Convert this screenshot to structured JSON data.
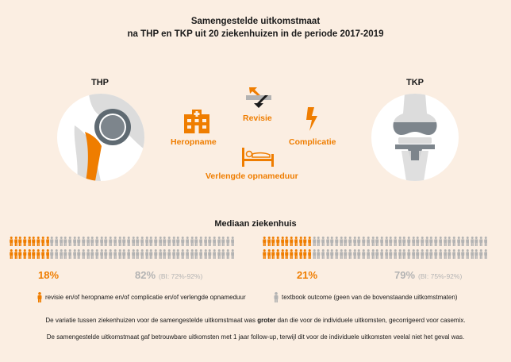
{
  "header": {
    "title_line1": "Samengestelde uitkomstmaat",
    "title_line2": "na THP en TKP uit 20 ziekenhuizen in de periode 2017-2019"
  },
  "left_label": "THP",
  "right_label": "TKP",
  "outcomes": {
    "revisie": "Revisie",
    "heropname": "Heropname",
    "complicatie": "Complicatie",
    "verlengde": "Verlengde opnameduur"
  },
  "section_title": "Mediaan ziekenhuis",
  "thp": {
    "pct_orange": "18%",
    "pct_grey": "82%",
    "ci": "(BI: 72%-92%)",
    "orange_fraction": 0.18
  },
  "tkp": {
    "pct_orange": "21%",
    "pct_grey": "79%",
    "ci": "(BI: 75%-92%)",
    "orange_fraction": 0.21
  },
  "legend": {
    "orange": "revisie en/of heropname en/of complicatie en/of verlengde opnameduur",
    "grey": "textbook outcome (geen van de bovenstaande uitkomstmaten)"
  },
  "notes": {
    "line1_before": "De variatie tussen ziekenhuizen voor de samengestelde uitkomstmaat was ",
    "line1_bold": "groter",
    "line1_after": " dan die voor de individuele uitkomsten, gecorrigeerd voor casemix.",
    "line2": "De samengestelde uitkomstmaat gaf betrouwbare uitkomsten met 1 jaar follow-up, terwijl dit voor de individuele uitkomsten veelal niet het geval was."
  },
  "colors": {
    "orange": "#ef7d00",
    "grey": "#b3b3b3",
    "background": "#fbeee2"
  }
}
